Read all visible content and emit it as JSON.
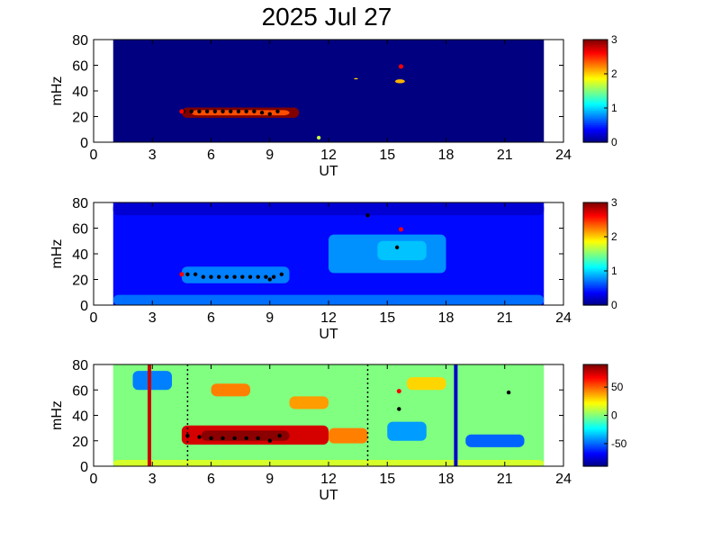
{
  "title": "2025 Jul 27",
  "chart_data": [
    {
      "type": "heatmap",
      "xlabel": "UT",
      "ylabel": "mHz",
      "xlim": [
        0,
        24
      ],
      "ylim": [
        0,
        80
      ],
      "xticks": [
        0,
        3,
        6,
        9,
        12,
        15,
        18,
        21,
        24
      ],
      "yticks": [
        0,
        20,
        40,
        60,
        80
      ],
      "data_extent_x": [
        1,
        23
      ],
      "colorbar": {
        "range": [
          0,
          3
        ],
        "ticks": [
          0,
          1,
          2,
          3
        ]
      },
      "colormap": "jet",
      "background_level": 0,
      "features": [
        {
          "x": [
            4.5,
            10.5
          ],
          "y": [
            19,
            27
          ],
          "level": 3
        },
        {
          "x": [
            5.0,
            10.0
          ],
          "y": [
            21,
            25
          ],
          "level": 2.4
        },
        {
          "x": [
            11.4,
            11.6
          ],
          "y": [
            2,
            5
          ],
          "level": 1.7
        },
        {
          "x": [
            13.3,
            13.5
          ],
          "y": [
            49,
            50
          ],
          "level": 2.0
        },
        {
          "x": [
            15.4,
            15.9
          ],
          "y": [
            46,
            49
          ],
          "level": 2.1
        }
      ],
      "markers_black": [
        [
          4.6,
          24
        ],
        [
          5.0,
          24
        ],
        [
          5.4,
          24
        ],
        [
          5.8,
          24
        ],
        [
          6.2,
          24
        ],
        [
          6.6,
          24
        ],
        [
          7.0,
          24
        ],
        [
          7.4,
          24
        ],
        [
          7.8,
          24
        ],
        [
          8.2,
          24
        ],
        [
          8.6,
          23
        ],
        [
          9.0,
          22
        ],
        [
          9.4,
          24
        ]
      ],
      "markers_red": [
        [
          4.5,
          24
        ],
        [
          15.7,
          59
        ]
      ]
    },
    {
      "type": "heatmap",
      "xlabel": "UT",
      "ylabel": "mHz",
      "xlim": [
        0,
        24
      ],
      "ylim": [
        0,
        80
      ],
      "xticks": [
        0,
        3,
        6,
        9,
        12,
        15,
        18,
        21,
        24
      ],
      "yticks": [
        0,
        20,
        40,
        60,
        80
      ],
      "data_extent_x": [
        1,
        23
      ],
      "colorbar": {
        "range": [
          0,
          3
        ],
        "ticks": [
          0,
          1,
          2,
          3
        ]
      },
      "colormap": "jet",
      "background_level": 0.4,
      "features": [
        {
          "x": [
            1,
            23
          ],
          "y": [
            0,
            8
          ],
          "level": 0.7
        },
        {
          "x": [
            4.5,
            10
          ],
          "y": [
            17,
            30
          ],
          "level": 0.75
        },
        {
          "x": [
            12,
            18
          ],
          "y": [
            25,
            55
          ],
          "level": 0.8
        },
        {
          "x": [
            14.5,
            17
          ],
          "y": [
            35,
            50
          ],
          "level": 0.95
        },
        {
          "x": [
            1,
            23
          ],
          "y": [
            70,
            80
          ],
          "level": 0.25
        }
      ],
      "markers_black": [
        [
          4.8,
          24
        ],
        [
          5.2,
          24
        ],
        [
          5.6,
          22
        ],
        [
          6.0,
          22
        ],
        [
          6.4,
          22
        ],
        [
          6.8,
          22
        ],
        [
          7.2,
          22
        ],
        [
          7.6,
          22
        ],
        [
          8.0,
          22
        ],
        [
          8.4,
          22
        ],
        [
          8.8,
          22
        ],
        [
          9.0,
          20
        ],
        [
          9.2,
          22
        ],
        [
          9.6,
          24
        ],
        [
          14.0,
          70
        ],
        [
          15.5,
          45
        ]
      ],
      "markers_red": [
        [
          4.5,
          24
        ],
        [
          15.7,
          59
        ]
      ]
    },
    {
      "type": "heatmap",
      "xlabel": "UT",
      "ylabel": "mHz",
      "xlim": [
        0,
        24
      ],
      "ylim": [
        0,
        80
      ],
      "xticks": [
        0,
        3,
        6,
        9,
        12,
        15,
        18,
        21,
        24
      ],
      "yticks": [
        0,
        20,
        40,
        60,
        80
      ],
      "data_extent_x": [
        1,
        23
      ],
      "colorbar": {
        "range": [
          -90,
          90
        ],
        "ticks": [
          50,
          0,
          -50
        ]
      },
      "colormap": "jet",
      "background_level": 0,
      "features": [
        {
          "x": [
            4.5,
            12
          ],
          "y": [
            17,
            32
          ],
          "level": 75
        },
        {
          "x": [
            5.5,
            10
          ],
          "y": [
            20,
            28
          ],
          "level": 88
        },
        {
          "x": [
            12,
            14
          ],
          "y": [
            18,
            30
          ],
          "level": 45
        },
        {
          "x": [
            2,
            4
          ],
          "y": [
            60,
            75
          ],
          "level": -45
        },
        {
          "x": [
            6,
            8
          ],
          "y": [
            55,
            65
          ],
          "level": 45
        },
        {
          "x": [
            10,
            12
          ],
          "y": [
            45,
            55
          ],
          "level": 40
        },
        {
          "x": [
            19,
            22
          ],
          "y": [
            15,
            25
          ],
          "level": -50
        },
        {
          "x": [
            15,
            17
          ],
          "y": [
            20,
            35
          ],
          "level": -40
        },
        {
          "x": [
            16,
            18
          ],
          "y": [
            60,
            70
          ],
          "level": 30
        },
        {
          "x": [
            1,
            23
          ],
          "y": [
            0,
            5
          ],
          "level": 15
        }
      ],
      "vertical_lines": [
        {
          "x": 2.85,
          "color": "#cc0000"
        },
        {
          "x": 18.5,
          "color": "#0000cc"
        }
      ],
      "dashed_lines": [
        4.8,
        14.0
      ],
      "markers_black": [
        [
          4.8,
          24
        ],
        [
          5.4,
          23
        ],
        [
          6.0,
          22
        ],
        [
          6.6,
          22
        ],
        [
          7.2,
          22
        ],
        [
          7.8,
          22
        ],
        [
          8.4,
          22
        ],
        [
          9.0,
          20
        ],
        [
          9.5,
          24
        ],
        [
          15.6,
          45
        ],
        [
          21.2,
          58
        ]
      ],
      "markers_red": [
        [
          15.6,
          59
        ]
      ]
    }
  ]
}
